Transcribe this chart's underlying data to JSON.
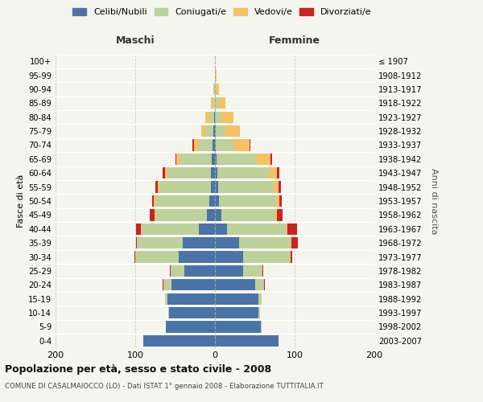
{
  "age_groups": [
    "0-4",
    "5-9",
    "10-14",
    "15-19",
    "20-24",
    "25-29",
    "30-34",
    "35-39",
    "40-44",
    "45-49",
    "50-54",
    "55-59",
    "60-64",
    "65-69",
    "70-74",
    "75-79",
    "80-84",
    "85-89",
    "90-94",
    "95-99",
    "100+"
  ],
  "birth_years": [
    "2003-2007",
    "1998-2002",
    "1993-1997",
    "1988-1992",
    "1983-1987",
    "1978-1982",
    "1973-1977",
    "1968-1972",
    "1963-1967",
    "1958-1962",
    "1953-1957",
    "1948-1952",
    "1943-1947",
    "1938-1942",
    "1933-1937",
    "1928-1932",
    "1923-1927",
    "1918-1922",
    "1913-1917",
    "1908-1912",
    "≤ 1907"
  ],
  "colors": {
    "celibe": "#4a74a8",
    "coniugato": "#bdd19a",
    "vedovo": "#f5c162",
    "divorziato": "#cc2222"
  },
  "males": {
    "celibe": [
      90,
      62,
      58,
      60,
      55,
      38,
      45,
      40,
      20,
      10,
      7,
      5,
      5,
      4,
      3,
      2,
      1,
      0,
      0,
      0,
      0
    ],
    "coniugato": [
      0,
      0,
      1,
      3,
      10,
      18,
      55,
      58,
      72,
      65,
      68,
      65,
      55,
      40,
      18,
      10,
      5,
      2,
      1,
      0,
      0
    ],
    "vedovo": [
      0,
      0,
      0,
      0,
      0,
      0,
      0,
      0,
      1,
      1,
      2,
      2,
      3,
      4,
      5,
      5,
      6,
      3,
      1,
      0,
      0
    ],
    "divorziato": [
      0,
      0,
      0,
      0,
      1,
      1,
      1,
      1,
      6,
      6,
      2,
      3,
      3,
      1,
      2,
      0,
      0,
      0,
      0,
      0,
      0
    ]
  },
  "females": {
    "nubile": [
      80,
      58,
      55,
      55,
      50,
      35,
      35,
      30,
      15,
      8,
      5,
      4,
      3,
      2,
      1,
      1,
      0,
      0,
      0,
      0,
      0
    ],
    "coniugata": [
      0,
      1,
      2,
      4,
      12,
      25,
      60,
      65,
      75,
      68,
      72,
      70,
      65,
      50,
      22,
      12,
      8,
      5,
      2,
      1,
      0
    ],
    "vedova": [
      0,
      0,
      0,
      0,
      0,
      0,
      0,
      1,
      1,
      2,
      4,
      6,
      10,
      18,
      20,
      18,
      15,
      8,
      3,
      1,
      0
    ],
    "divorziata": [
      0,
      0,
      0,
      0,
      1,
      1,
      2,
      8,
      12,
      7,
      3,
      3,
      3,
      2,
      1,
      0,
      0,
      0,
      0,
      0,
      0
    ]
  },
  "xlim": 200,
  "title": "Popolazione per età, sesso e stato civile - 2008",
  "subtitle": "COMUNE DI CASALMAIOCCO (LO) - Dati ISTAT 1° gennaio 2008 - Elaborazione TUTTITALIA.IT",
  "ylabel_left": "Fasce di età",
  "ylabel_right": "Anni di nascita",
  "xlabel_maschi": "Maschi",
  "xlabel_femmine": "Femmine",
  "legend_labels": [
    "Celibi/Nubili",
    "Coniugati/e",
    "Vedovi/e",
    "Divorziati/e"
  ],
  "background_color": "#f5f5f0"
}
